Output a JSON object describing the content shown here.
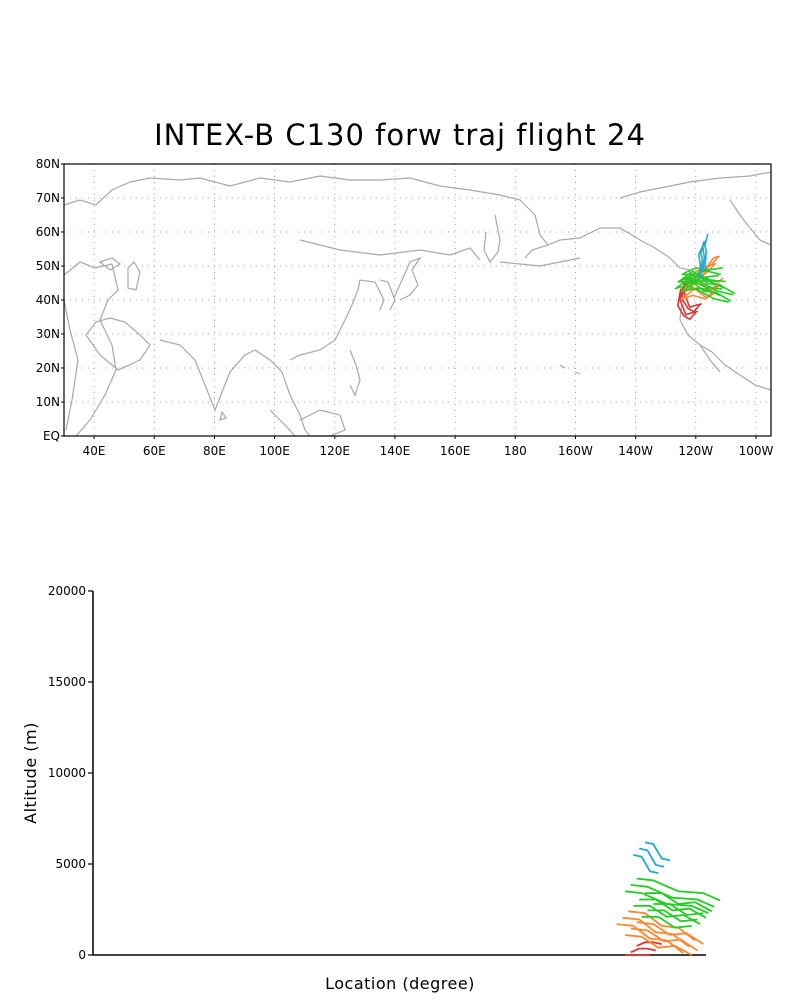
{
  "title": "INTEX-B C130 forw traj flight 24",
  "map_panel": {
    "lat_labels": [
      "80N",
      "70N",
      "60N",
      "50N",
      "40N",
      "30N",
      "20N",
      "10N",
      "EQ"
    ],
    "lon_labels": [
      "40E",
      "60E",
      "80E",
      "100E",
      "120E",
      "140E",
      "160E",
      "180",
      "160W",
      "140W",
      "120W",
      "100W"
    ],
    "land_color": "#a8a8a8",
    "grid": true
  },
  "altitude_panel": {
    "ylabel": "Altitude (m)",
    "xlabel": "Location (degree)",
    "ytick_labels": [
      "20000",
      "15000",
      "10000",
      "5000",
      "0"
    ]
  },
  "chart_data": {
    "type": "line",
    "ylabel": "Altitude (m)",
    "xlabel": "Location (degree)",
    "ylim": [
      0,
      20000
    ],
    "yticks": [
      0,
      5000,
      10000,
      15000,
      20000
    ],
    "series": [
      {
        "color": "#dd3333",
        "lon": [
          -124,
          -125,
          -123,
          -121,
          -119
        ],
        "lat": [
          45,
          40,
          37,
          36,
          38
        ],
        "alt_x": [
          -122,
          -121,
          -120,
          -119
        ],
        "alt": [
          300,
          200,
          500,
          100
        ]
      },
      {
        "color": "#ff8833",
        "lon": [
          -124,
          -121,
          -118,
          -115,
          -113
        ],
        "lat": [
          44,
          46,
          48,
          50,
          52
        ],
        "alt_x": [
          -123,
          -121,
          -119,
          -117,
          -115
        ],
        "alt": [
          2200,
          1800,
          1400,
          1000,
          600
        ]
      },
      {
        "color": "#ff8833",
        "lon": [
          -124,
          -120,
          -116,
          -112
        ],
        "lat": [
          42,
          43,
          42,
          44
        ],
        "alt_x": [
          -122,
          -120,
          -118,
          -116,
          -114
        ],
        "alt": [
          1600,
          1200,
          900,
          700,
          400
        ]
      },
      {
        "color": "#22cc22",
        "lon": [
          -126,
          -122,
          -117,
          -113,
          -108
        ],
        "lat": [
          45,
          46,
          44,
          42,
          41
        ],
        "alt_x": [
          -122,
          -120,
          -117,
          -114,
          -112
        ],
        "alt": [
          4000,
          3600,
          3300,
          2900,
          2800
        ]
      },
      {
        "color": "#22cc22",
        "lon": [
          -125,
          -121,
          -117,
          -112
        ],
        "lat": [
          47,
          47,
          48,
          47
        ],
        "alt_x": [
          -121,
          -119,
          -117,
          -115,
          -113
        ],
        "alt": [
          3200,
          2900,
          2600,
          2400,
          2200
        ]
      },
      {
        "color": "#22cc22",
        "lon": [
          -124,
          -120,
          -116,
          -111
        ],
        "lat": [
          44,
          45,
          45,
          43
        ],
        "alt_x": [
          -120,
          -118,
          -116,
          -114
        ],
        "alt": [
          2600,
          2300,
          2000,
          1800
        ]
      },
      {
        "color": "#22aacc",
        "lon": [
          -118,
          -117.5,
          -118,
          -117
        ],
        "lat": [
          48,
          52,
          55,
          57
        ],
        "alt_x": [
          -121,
          -120,
          -119,
          -118
        ],
        "alt": [
          6000,
          5600,
          5100,
          4700
        ]
      }
    ]
  }
}
